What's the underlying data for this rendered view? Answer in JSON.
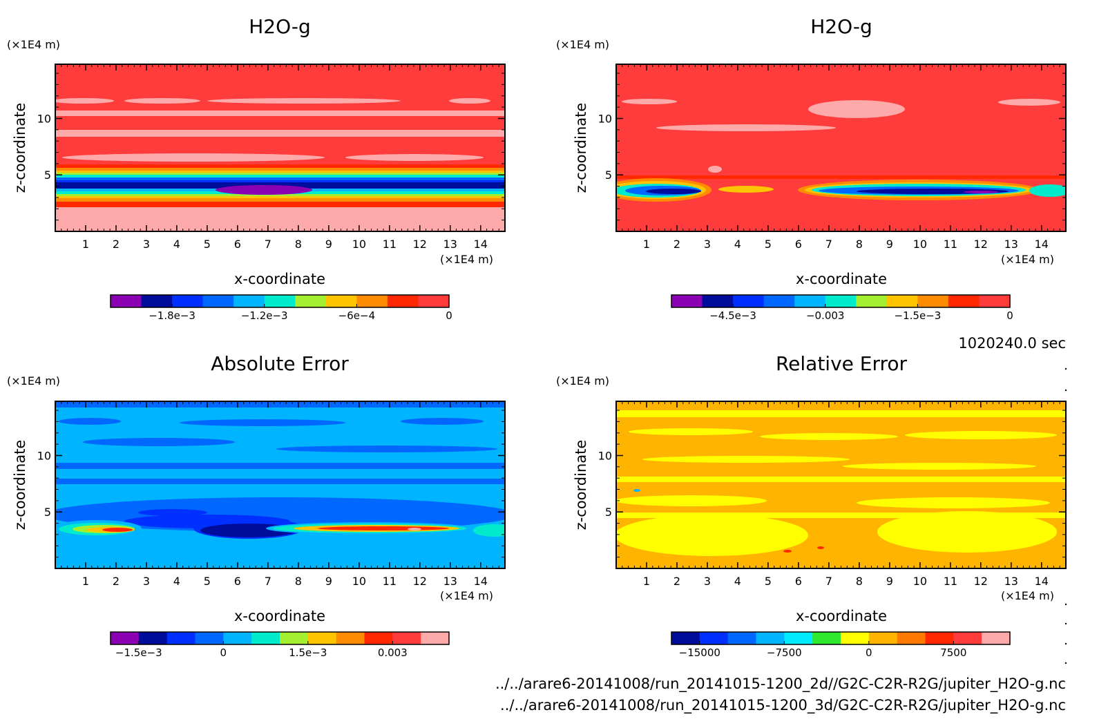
{
  "time_label": "1020240.0 sec",
  "footer_lines": [
    "../../arare6-20141008/run_20141015-1200_2d//G2C-C2R-R2G/jupiter_H2O-g.nc",
    "../../arare6-20141008/run_20141015-1200_3d/G2C-C2R-R2G/jupiter_H2O-g.nc"
  ],
  "chart_data": [
    {
      "type": "heatmap",
      "title": "H2O-g",
      "xlabel": "x-coordinate",
      "ylabel": "z-coordinate",
      "x_unit": "(×1E4 m)",
      "y_unit": "(×1E4 m)",
      "xlim": [
        0,
        14.8
      ],
      "ylim": [
        0,
        14.8
      ],
      "x_ticks": [
        1,
        2,
        3,
        4,
        5,
        6,
        7,
        8,
        9,
        10,
        11,
        12,
        13,
        14
      ],
      "y_ticks": [
        5,
        10
      ],
      "colorbar": {
        "colors": [
          "#8c00b4",
          "#000c9c",
          "#0030ff",
          "#0068ff",
          "#00b4ff",
          "#00ebcc",
          "#a4ef30",
          "#ffc400",
          "#ff8c00",
          "#ff2800",
          "#ff3c3c"
        ],
        "min": -0.0022,
        "max": 0,
        "tick_values": [
          -0.0018,
          -0.0012,
          -0.0006,
          0
        ],
        "tick_labels": [
          "−1.8e−3",
          "−1.2e−3",
          "−6e−4",
          "0"
        ]
      }
    },
    {
      "type": "heatmap",
      "title": "H2O-g",
      "xlabel": "x-coordinate",
      "ylabel": "z-coordinate",
      "x_unit": "(×1E4 m)",
      "y_unit": "(×1E4 m)",
      "xlim": [
        0,
        14.8
      ],
      "ylim": [
        0,
        14.8
      ],
      "x_ticks": [
        1,
        2,
        3,
        4,
        5,
        6,
        7,
        8,
        9,
        10,
        11,
        12,
        13,
        14
      ],
      "y_ticks": [
        5,
        10
      ],
      "colorbar": {
        "colors": [
          "#8c00b4",
          "#000c9c",
          "#0030ff",
          "#0068ff",
          "#00b4ff",
          "#00ebcc",
          "#a4ef30",
          "#ffc400",
          "#ff8c00",
          "#ff2800",
          "#ff3c3c"
        ],
        "min": -0.0055,
        "max": 0,
        "tick_values": [
          -0.0045,
          -0.003,
          -0.0015,
          0
        ],
        "tick_labels": [
          "−4.5e−3",
          "−0.003",
          "−1.5e−3",
          "0"
        ]
      }
    },
    {
      "type": "heatmap",
      "title": "Absolute Error",
      "xlabel": "x-coordinate",
      "ylabel": "z-coordinate",
      "x_unit": "(×1E4 m)",
      "y_unit": "(×1E4 m)",
      "xlim": [
        0,
        14.8
      ],
      "ylim": [
        0,
        14.8
      ],
      "x_ticks": [
        1,
        2,
        3,
        4,
        5,
        6,
        7,
        8,
        9,
        10,
        11,
        12,
        13,
        14
      ],
      "y_ticks": [
        5,
        10
      ],
      "colorbar": {
        "colors": [
          "#8c00b4",
          "#000c9c",
          "#0030ff",
          "#0068ff",
          "#00b4ff",
          "#00ebcc",
          "#a4ef30",
          "#ffc400",
          "#ff8c00",
          "#ff2800",
          "#ff3c3c",
          "#ffaaaa"
        ],
        "min": -0.002,
        "max": 0.004,
        "tick_values": [
          -0.0015,
          0,
          0.0015,
          0.003
        ],
        "tick_labels": [
          "−1.5e−3",
          "0",
          "1.5e−3",
          "0.003"
        ]
      }
    },
    {
      "type": "heatmap",
      "title": "Relative Error",
      "xlabel": "x-coordinate",
      "ylabel": "z-coordinate",
      "x_unit": "(×1E4 m)",
      "y_unit": "(×1E4 m)",
      "xlim": [
        0,
        14.8
      ],
      "ylim": [
        0,
        14.8
      ],
      "x_ticks": [
        1,
        2,
        3,
        4,
        5,
        6,
        7,
        8,
        9,
        10,
        11,
        12,
        13,
        14
      ],
      "y_ticks": [
        5,
        10
      ],
      "colorbar": {
        "colors": [
          "#000c9c",
          "#0030ff",
          "#0068ff",
          "#00b4ff",
          "#00ebff",
          "#30e830",
          "#ffff00",
          "#ffb400",
          "#ff7800",
          "#ff2800",
          "#ff3c3c",
          "#ffaaaa"
        ],
        "min": -17500,
        "max": 12500,
        "tick_values": [
          -15000,
          -7500,
          0,
          7500
        ],
        "tick_labels": [
          "−15000",
          "−7500",
          "0",
          "7500"
        ]
      }
    }
  ]
}
